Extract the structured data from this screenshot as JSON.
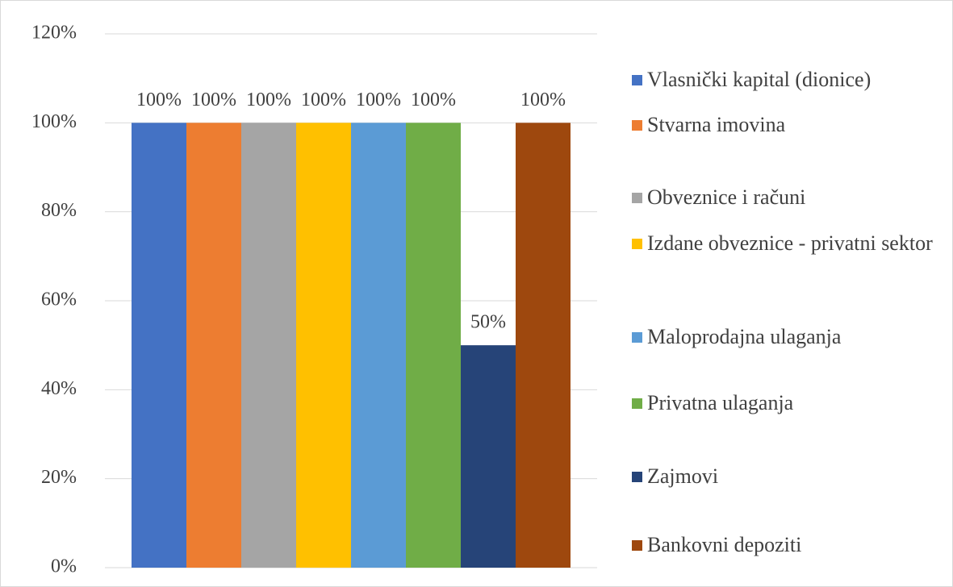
{
  "chart_data": {
    "type": "bar",
    "categories": [
      null
    ],
    "series": [
      {
        "name": "Vlasnički kapital (dionice)",
        "color": "#4472c4",
        "values": [
          100
        ],
        "value_labels": [
          "100%"
        ]
      },
      {
        "name": "Stvarna imovina",
        "color": "#ed7d31",
        "values": [
          100
        ],
        "value_labels": [
          "100%"
        ]
      },
      {
        "name": "Obveznice i računi",
        "color": "#a5a5a5",
        "values": [
          100
        ],
        "value_labels": [
          "100%"
        ]
      },
      {
        "name": "Izdane obveznice - privatni sektor",
        "color": "#ffc000",
        "values": [
          100
        ],
        "value_labels": [
          "100%"
        ]
      },
      {
        "name": "Maloprodajna ulaganja",
        "color": "#5b9bd5",
        "values": [
          100
        ],
        "value_labels": [
          "100%"
        ]
      },
      {
        "name": "Privatna ulaganja",
        "color": "#70ad47",
        "values": [
          100
        ],
        "value_labels": [
          "100%"
        ]
      },
      {
        "name": "Zajmovi",
        "color": "#264478",
        "values": [
          50
        ],
        "value_labels": [
          "50%"
        ]
      },
      {
        "name": "Bankovni depoziti",
        "color": "#9e480e",
        "values": [
          100
        ],
        "value_labels": [
          "100%"
        ]
      }
    ],
    "ylim": [
      0,
      120
    ],
    "yticks": [
      {
        "value": 0,
        "label": "0%"
      },
      {
        "value": 20,
        "label": "20%"
      },
      {
        "value": 40,
        "label": "40%"
      },
      {
        "value": 60,
        "label": "60%"
      },
      {
        "value": 80,
        "label": "80%"
      },
      {
        "value": 100,
        "label": "100%"
      },
      {
        "value": 120,
        "label": "120%"
      }
    ],
    "grid": true,
    "legend": "right"
  }
}
